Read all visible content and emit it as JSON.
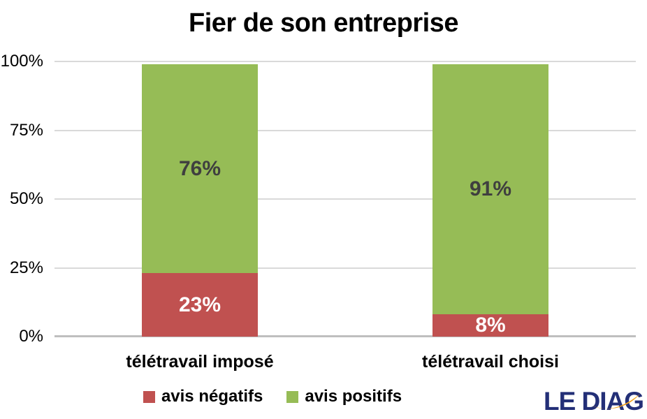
{
  "title": "Fier de son entreprise",
  "chart_data": {
    "type": "bar",
    "stacked": true,
    "title": "Fier de son entreprise",
    "categories": [
      "télétravail imposé",
      "télétravail choisi"
    ],
    "series": [
      {
        "name": "avis négatifs",
        "color": "#C05150",
        "label_color": "#FFFFFF",
        "values": [
          23,
          8
        ]
      },
      {
        "name": "avis positifs",
        "color": "#96BC56",
        "label_color": "#3F3F3F",
        "values": [
          76,
          91
        ]
      }
    ],
    "value_labels": [
      [
        "23%",
        "8%"
      ],
      [
        "76%",
        "91%"
      ]
    ],
    "xlabel": "",
    "ylabel": "",
    "ylim": [
      0,
      100
    ],
    "yticks": [
      {
        "value": 0,
        "label": "0%"
      },
      {
        "value": 25,
        "label": "25%"
      },
      {
        "value": 50,
        "label": "50%"
      },
      {
        "value": 75,
        "label": "75%"
      },
      {
        "value": 100,
        "label": "100%"
      }
    ],
    "grid": true,
    "gridline_color": "#D9D9D9",
    "axis_line_color": "#BFBFBF",
    "legend_position": "bottom"
  },
  "legend": {
    "items": [
      {
        "label": "avis négatifs",
        "color": "#C05150"
      },
      {
        "label": "avis positifs",
        "color": "#96BC56"
      }
    ]
  },
  "logo": {
    "text": "LE DIAG",
    "color": "#232F77",
    "swoosh_color": "#F2A21D"
  }
}
